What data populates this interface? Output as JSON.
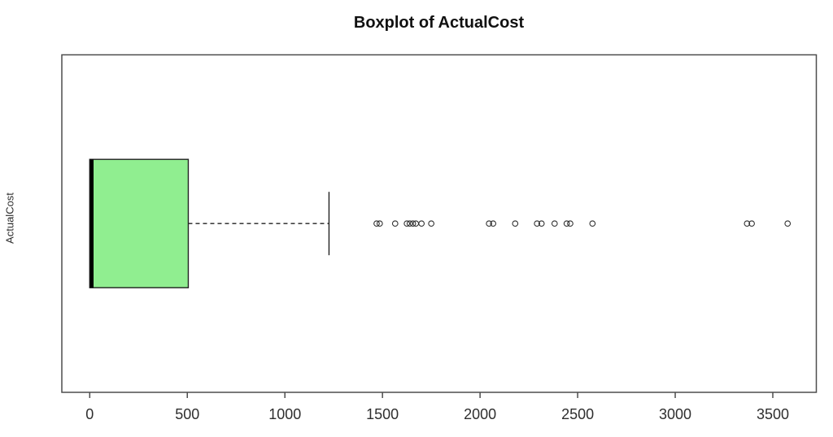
{
  "chart_data": {
    "type": "boxplot",
    "orientation": "horizontal",
    "title": "Boxplot of ActualCost",
    "xlabel": "",
    "ylabel": "ActualCost",
    "series_name": "ActualCost",
    "stats": {
      "lower_whisker": 0,
      "q1": 0,
      "median": 10,
      "q3": 505,
      "upper_whisker": 1226
    },
    "outliers": [
      1470,
      1486,
      1565,
      1625,
      1640,
      1656,
      1671,
      1700,
      1750,
      2046,
      2067,
      2180,
      2292,
      2315,
      2382,
      2444,
      2462,
      2576,
      3368,
      3392,
      3576
    ],
    "x_ticks": [
      0,
      500,
      1000,
      1500,
      2000,
      2500,
      3000,
      3500
    ],
    "x_tick_labels": [
      "0",
      "500",
      "1000",
      "1500",
      "2000",
      "2500",
      "3000",
      "3500"
    ],
    "xlim": [
      -143,
      3723
    ],
    "grid": false,
    "legend": null,
    "colors": {
      "box_fill": "#90ee90",
      "box_border": "#212121",
      "median": "#000000",
      "whisker": "#212121",
      "outlier_stroke": "#2e2e2e",
      "frame": "#4d4d4d",
      "tick": "#4d4d4d",
      "text": "#2e2e2e",
      "background": "#ffffff"
    }
  }
}
